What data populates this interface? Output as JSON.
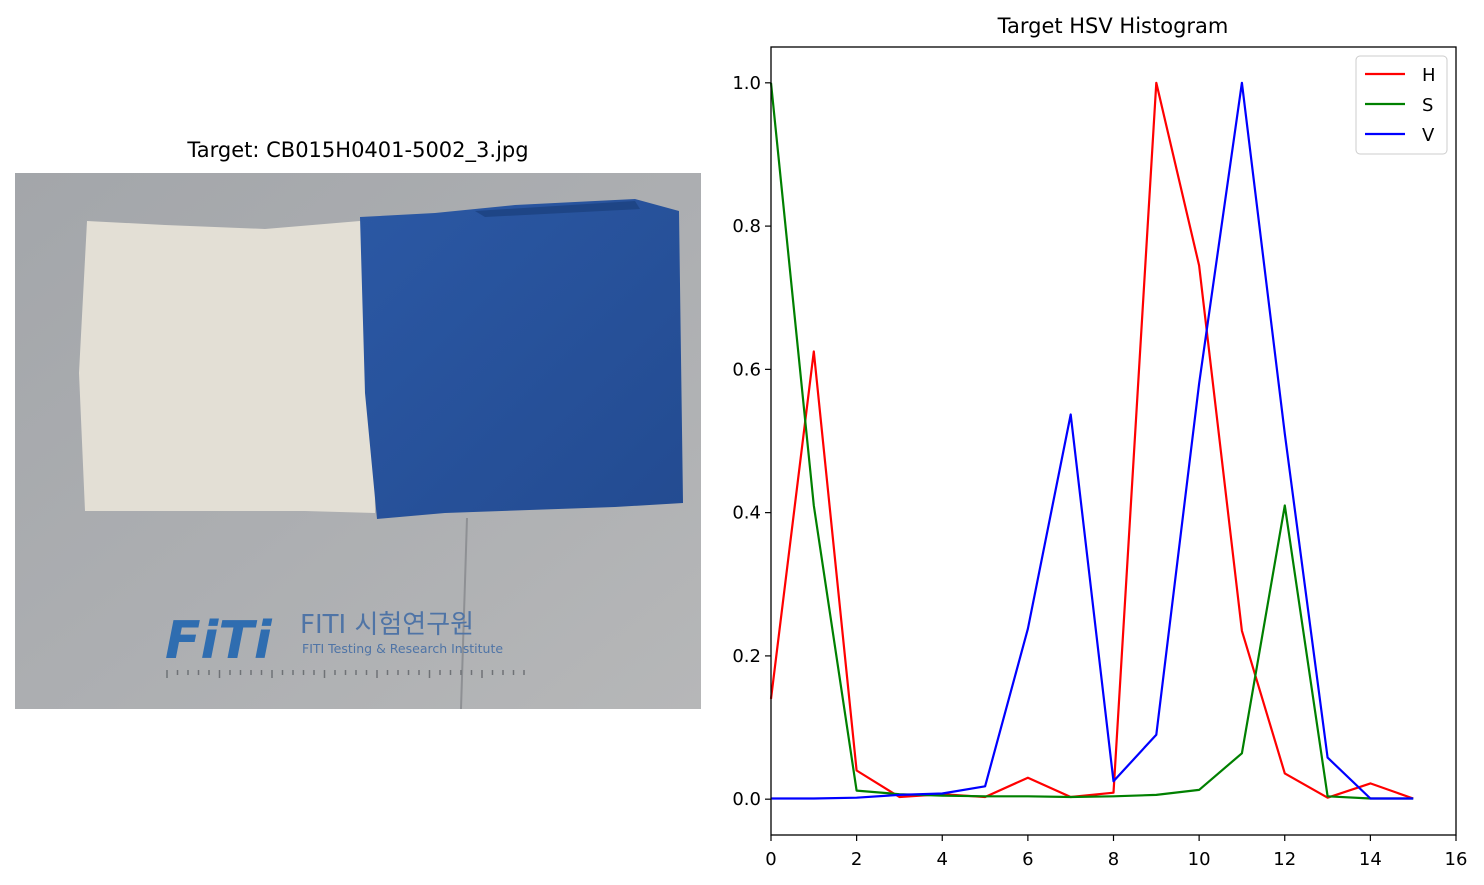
{
  "image_panel": {
    "title": "Target: CB015H0401-5002_3.jpg",
    "logo": {
      "mark": "FiTi",
      "name": "FITI 시험연구원",
      "subtitle": "FITI Testing & Research Institute"
    },
    "colors": {
      "background": "#a9abae",
      "left_fabric": "#e4e0d6",
      "right_fabric": "#2a559f",
      "logo": "#2f6db0"
    }
  },
  "chart_data": {
    "type": "line",
    "title": "Target HSV Histogram",
    "xlabel": "",
    "ylabel": "",
    "xlim": [
      0,
      16
    ],
    "ylim": [
      -0.05,
      1.05
    ],
    "xticks": [
      0,
      2,
      4,
      6,
      8,
      10,
      12,
      14,
      16
    ],
    "yticks": [
      0.0,
      0.2,
      0.4,
      0.6,
      0.8,
      1.0
    ],
    "grid": false,
    "legend_position": "top-right",
    "x": [
      0,
      1,
      2,
      3,
      4,
      5,
      6,
      7,
      8,
      9,
      10,
      11,
      12,
      13,
      14,
      15
    ],
    "series": [
      {
        "name": "H",
        "color": "#ff0000",
        "values": [
          0.14,
          0.625,
          0.04,
          0.003,
          0.007,
          0.003,
          0.03,
          0.003,
          0.009,
          1.0,
          0.745,
          0.235,
          0.036,
          0.002,
          0.022,
          0.001
        ]
      },
      {
        "name": "S",
        "color": "#008000",
        "values": [
          1.0,
          0.41,
          0.012,
          0.007,
          0.005,
          0.004,
          0.004,
          0.003,
          0.004,
          0.006,
          0.013,
          0.064,
          0.41,
          0.004,
          0.001,
          0.001
        ]
      },
      {
        "name": "V",
        "color": "#0000ff",
        "values": [
          0.001,
          0.001,
          0.002,
          0.006,
          0.008,
          0.018,
          0.238,
          0.537,
          0.025,
          0.09,
          0.58,
          1.0,
          0.51,
          0.058,
          0.001,
          0.001
        ]
      }
    ]
  }
}
